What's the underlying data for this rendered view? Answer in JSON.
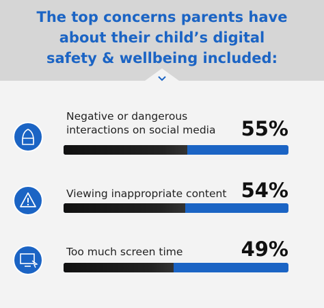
{
  "chart_data": {
    "type": "bar",
    "title": "The top concerns parents have about their child’s digital safety & wellbeing included:",
    "categories": [
      "Negative or dangerous interactions on social media",
      "Viewing inappropriate content",
      "Too much screen time"
    ],
    "values": [
      55,
      54,
      49
    ],
    "value_labels": [
      "55%",
      "54%",
      "49%"
    ],
    "xlim": [
      0,
      100
    ],
    "color": "#1b64c4",
    "fill_color": "#111111"
  }
}
